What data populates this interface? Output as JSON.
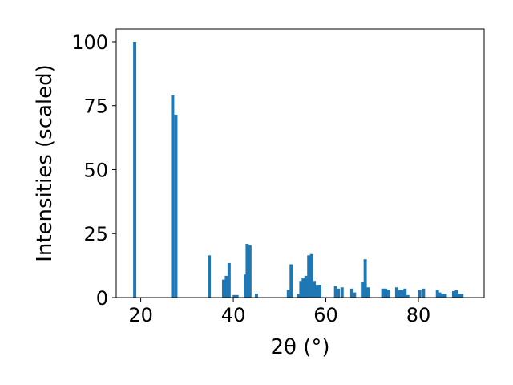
{
  "chart_data": {
    "type": "bar",
    "xlabel": "2θ (°)",
    "ylabel": "Intensities (scaled)",
    "xlim": [
      14.7,
      94.2
    ],
    "ylim": [
      0,
      105
    ],
    "bar_width": 0.68,
    "color": "#1f77b4",
    "x_ticks": [
      20,
      40,
      60,
      80
    ],
    "y_ticks": [
      0,
      25,
      50,
      75,
      100
    ],
    "x": [
      18.7,
      26.9,
      27.6,
      34.8,
      37.9,
      38.5,
      39.1,
      40.2,
      40.8,
      42.6,
      43.0,
      43.6,
      45.0,
      51.9,
      52.5,
      54.1,
      54.6,
      55.1,
      55.7,
      56.3,
      56.9,
      57.5,
      58.1,
      58.7,
      62.1,
      62.7,
      63.5,
      65.6,
      66.2,
      67.9,
      68.5,
      69.1,
      72.3,
      72.9,
      73.5,
      75.3,
      75.9,
      76.5,
      77.1,
      77.7,
      80.3,
      81.1,
      84.1,
      84.6,
      85.2,
      85.8,
      87.6,
      88.2,
      88.8,
      89.4
    ],
    "values": [
      100,
      79,
      71.5,
      16.5,
      7,
      8.5,
      13.5,
      1,
      1,
      9,
      21,
      20.5,
      1.5,
      3,
      13,
      1.5,
      6.5,
      7.5,
      8.5,
      16.5,
      17,
      6.5,
      5,
      5,
      4.5,
      3.5,
      4,
      3.5,
      2,
      6,
      15,
      4,
      3.5,
      3.5,
      3,
      4,
      3,
      3,
      3.5,
      1,
      3,
      3.5,
      3,
      2,
      1.5,
      1.5,
      2.5,
      3,
      1.5,
      1.5
    ]
  }
}
